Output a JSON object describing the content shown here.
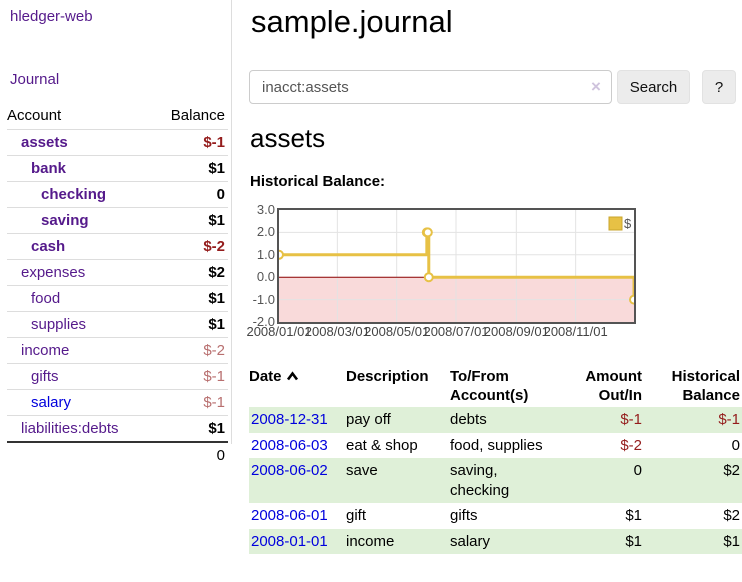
{
  "sidebar": {
    "brand": "hledger-web",
    "journal_link": "Journal",
    "accounts": {
      "col_account": "Account",
      "col_balance": "Balance",
      "rows": [
        {
          "name": "assets",
          "balance": "$-1"
        },
        {
          "name": "bank",
          "balance": "$1"
        },
        {
          "name": "checking",
          "balance": "0"
        },
        {
          "name": "saving",
          "balance": "$1"
        },
        {
          "name": "cash",
          "balance": "$-2"
        },
        {
          "name": "expenses",
          "balance": "$2"
        },
        {
          "name": "food",
          "balance": "$1"
        },
        {
          "name": "supplies",
          "balance": "$1"
        },
        {
          "name": "income",
          "balance": "$-2"
        },
        {
          "name": "gifts",
          "balance": "$-1"
        },
        {
          "name": "salary",
          "balance": "$-1"
        },
        {
          "name": "liabilities:debts",
          "balance": "$1"
        }
      ],
      "total": "0"
    }
  },
  "header": {
    "title": "sample.journal"
  },
  "search": {
    "value": "inacct:assets",
    "clear_icon": "×",
    "search_button": "Search",
    "help_button": "?"
  },
  "content": {
    "account_heading": "assets",
    "chart_heading": "Historical Balance:"
  },
  "chart_data": {
    "type": "line",
    "step": true,
    "title": "Historical Balance:",
    "legend": "$",
    "legend_position": "top-right",
    "x_range": [
      "2008-01-01",
      "2008-12-31"
    ],
    "ylim": [
      -2,
      3
    ],
    "y_ticks": [
      3,
      2,
      1,
      0,
      -1,
      -2
    ],
    "x_ticks": [
      {
        "date": "2008-01-01",
        "label": "2008/01/01"
      },
      {
        "date": "2008-03-01",
        "label": "2008/03/01"
      },
      {
        "date": "2008-05-01",
        "label": "2008/05/01"
      },
      {
        "date": "2008-07-01",
        "label": "2008/07/01"
      },
      {
        "date": "2008-09-01",
        "label": "2008/09/01"
      },
      {
        "date": "2008-11-01",
        "label": "2008/11/01"
      }
    ],
    "series": [
      {
        "name": "$",
        "color": "#e7c145",
        "points": [
          [
            "2008-01-01",
            1
          ],
          [
            "2008-06-01",
            2
          ],
          [
            "2008-06-02",
            2
          ],
          [
            "2008-06-03",
            0
          ],
          [
            "2008-12-31",
            -1
          ]
        ]
      }
    ],
    "colors": {
      "negative_region": "#f9dada",
      "zero_line": "#8b0000",
      "grid": "#e3e3e3",
      "border": "#545454",
      "legend_box_border": "#c9a52c"
    }
  },
  "register": {
    "headers": {
      "date": "Date",
      "description": "Description",
      "accounts": "To/From Account(s)",
      "amount": "Amount Out/In",
      "balance": "Historical Balance"
    },
    "rows": [
      {
        "date": "2008-12-31",
        "description": "pay off",
        "accounts": "debts",
        "amount": "$-1",
        "balance": "$-1"
      },
      {
        "date": "2008-06-03",
        "description": "eat & shop",
        "accounts": "food, supplies",
        "amount": "$-2",
        "balance": "0"
      },
      {
        "date": "2008-06-02",
        "description": "save",
        "accounts": "saving, checking",
        "amount": "0",
        "balance": "$2"
      },
      {
        "date": "2008-06-01",
        "description": "gift",
        "accounts": "gifts",
        "amount": "$1",
        "balance": "$2"
      },
      {
        "date": "2008-01-01",
        "description": "income",
        "accounts": "salary",
        "amount": "$1",
        "balance": "$1"
      }
    ]
  }
}
